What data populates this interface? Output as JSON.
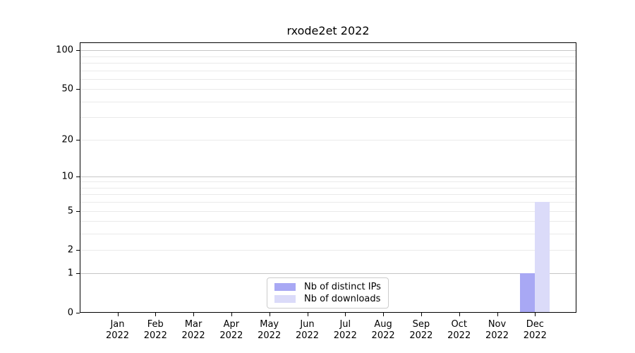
{
  "title": "rxode2et 2022",
  "chart_data": {
    "type": "bar",
    "title": "rxode2et 2022",
    "categories": [
      "Jan",
      "Feb",
      "Mar",
      "Apr",
      "May",
      "Jun",
      "Jul",
      "Aug",
      "Sep",
      "Oct",
      "Nov",
      "Dec"
    ],
    "x_year_label": "2022",
    "series": [
      {
        "name": "Nb of distinct IPs",
        "color": "#a8a8f4",
        "values": [
          0,
          0,
          0,
          0,
          0,
          0,
          0,
          0,
          0,
          0,
          0,
          1
        ]
      },
      {
        "name": "Nb of downloads",
        "color": "#dbdbf9",
        "values": [
          0,
          0,
          0,
          0,
          0,
          0,
          0,
          0,
          0,
          0,
          0,
          6
        ]
      }
    ],
    "yscale": "log1p",
    "ylim": [
      0,
      115
    ],
    "yticks_labeled": [
      0,
      1,
      2,
      5,
      10,
      20,
      50,
      100
    ],
    "ygrid_major": [
      1,
      10,
      100
    ],
    "ygrid_minor": [
      2,
      3,
      4,
      5,
      6,
      7,
      8,
      9,
      20,
      30,
      40,
      50,
      60,
      70,
      80,
      90
    ],
    "grid": "both",
    "legend_position": "lower center",
    "legend_entries": [
      "Nb of distinct IPs",
      "Nb of downloads"
    ]
  },
  "colors": {
    "background": "#ffffff",
    "spine": "#000000",
    "major_grid": "#c6c6c6",
    "minor_grid": "#eaeaea",
    "distinct_ips_bar": "#a8a8f4",
    "downloads_bar": "#dbdbf9",
    "legend_border": "#cccccc",
    "text": "#000000"
  }
}
